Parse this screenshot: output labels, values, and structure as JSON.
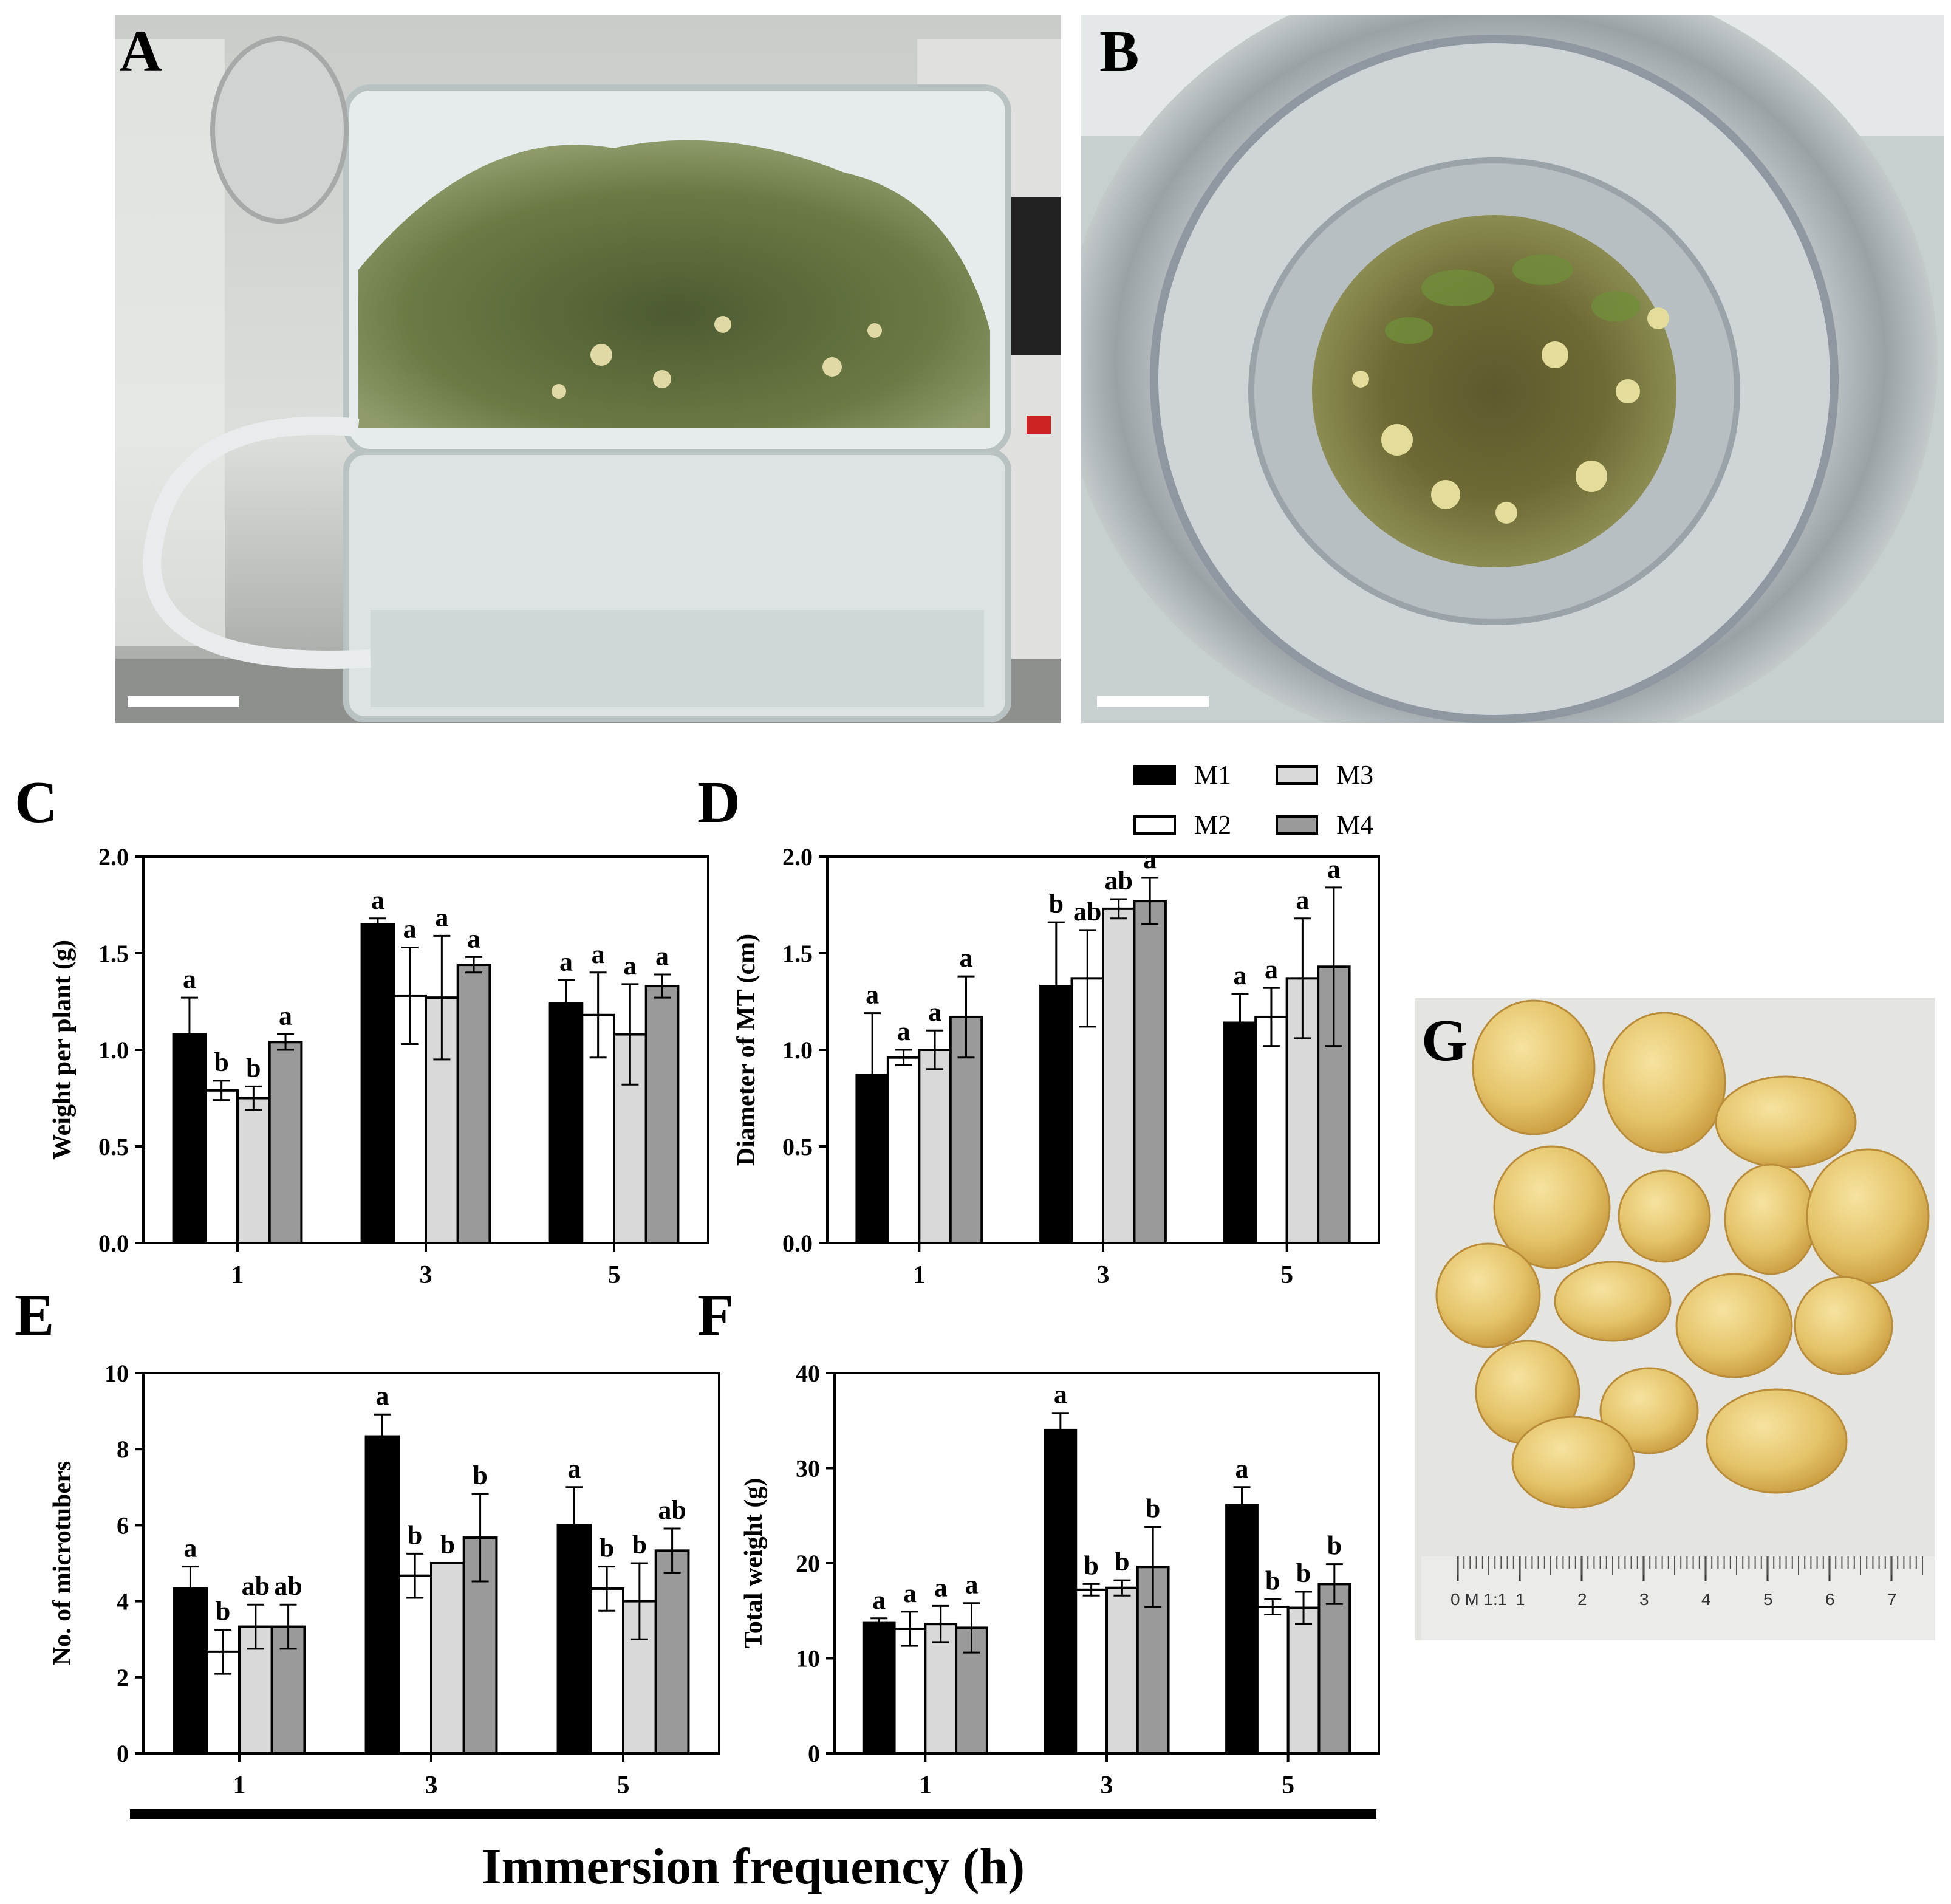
{
  "panels": {
    "A": "A",
    "B": "B",
    "C": "C",
    "D": "D",
    "E": "E",
    "F": "F",
    "G": "G"
  },
  "ruler": {
    "label": "0 M 1:1",
    "numbers": [
      "1",
      "2",
      "3",
      "4",
      "5",
      "6",
      "7"
    ]
  },
  "legend": [
    {
      "name": "M1",
      "color": "#000000"
    },
    {
      "name": "M2",
      "color": "#ffffff"
    },
    {
      "name": "M3",
      "color": "#d9d9d9"
    },
    {
      "name": "M4",
      "color": "#9a9a9a"
    }
  ],
  "x_axis_title": "Immersion frequency (h)",
  "chart_data": [
    {
      "panel": "C",
      "type": "bar",
      "ylabel": "Weight per plant (g)",
      "ylim": [
        0,
        2.0
      ],
      "yticks": [
        "0.0",
        "0.5",
        "1.0",
        "1.5",
        "2.0"
      ],
      "categories": [
        "1",
        "3",
        "5"
      ],
      "series": [
        {
          "name": "M1",
          "values": [
            1.08,
            1.65,
            1.24
          ],
          "errors": [
            0.19,
            0.03,
            0.12
          ],
          "letters": [
            "a",
            "a",
            "a"
          ]
        },
        {
          "name": "M2",
          "values": [
            0.79,
            1.28,
            1.18
          ],
          "errors": [
            0.05,
            0.25,
            0.22
          ],
          "letters": [
            "b",
            "a",
            "a"
          ]
        },
        {
          "name": "M3",
          "values": [
            0.75,
            1.27,
            1.08
          ],
          "errors": [
            0.06,
            0.32,
            0.26
          ],
          "letters": [
            "b",
            "a",
            "a"
          ]
        },
        {
          "name": "M4",
          "values": [
            1.04,
            1.44,
            1.33
          ],
          "errors": [
            0.04,
            0.04,
            0.06
          ],
          "letters": [
            "a",
            "a",
            "a"
          ]
        }
      ]
    },
    {
      "panel": "D",
      "type": "bar",
      "ylabel": "Diameter of MT (cm)",
      "ylim": [
        0,
        2.0
      ],
      "yticks": [
        "0.0",
        "0.5",
        "1.0",
        "1.5",
        "2.0"
      ],
      "categories": [
        "1",
        "3",
        "5"
      ],
      "series": [
        {
          "name": "M1",
          "values": [
            0.87,
            1.33,
            1.14
          ],
          "errors": [
            0.32,
            0.33,
            0.15
          ],
          "letters": [
            "a",
            "b",
            "a"
          ]
        },
        {
          "name": "M2",
          "values": [
            0.96,
            1.37,
            1.17
          ],
          "errors": [
            0.04,
            0.25,
            0.15
          ],
          "letters": [
            "a",
            "ab",
            "a"
          ]
        },
        {
          "name": "M3",
          "values": [
            1.0,
            1.73,
            1.37
          ],
          "errors": [
            0.1,
            0.05,
            0.31
          ],
          "letters": [
            "a",
            "ab",
            "a"
          ]
        },
        {
          "name": "M4",
          "values": [
            1.17,
            1.77,
            1.43
          ],
          "errors": [
            0.21,
            0.12,
            0.41
          ],
          "letters": [
            "a",
            "a",
            "a"
          ]
        }
      ]
    },
    {
      "panel": "E",
      "type": "bar",
      "ylabel": "No. of microtubers",
      "ylim": [
        0,
        10
      ],
      "yticks": [
        "0",
        "2",
        "4",
        "6",
        "8",
        "10"
      ],
      "categories": [
        "1",
        "3",
        "5"
      ],
      "series": [
        {
          "name": "M1",
          "values": [
            4.33,
            8.33,
            6.0
          ],
          "errors": [
            0.58,
            0.58,
            1.0
          ],
          "letters": [
            "a",
            "a",
            "a"
          ]
        },
        {
          "name": "M2",
          "values": [
            2.67,
            4.67,
            4.33
          ],
          "errors": [
            0.58,
            0.58,
            0.58
          ],
          "letters": [
            "b",
            "b",
            "b"
          ]
        },
        {
          "name": "M3",
          "values": [
            3.33,
            5.0,
            4.0
          ],
          "errors": [
            0.58,
            0.0,
            1.0
          ],
          "letters": [
            "ab",
            "b",
            "b"
          ]
        },
        {
          "name": "M4",
          "values": [
            3.33,
            5.67,
            5.33
          ],
          "errors": [
            0.58,
            1.15,
            0.58
          ],
          "letters": [
            "ab",
            "b",
            "ab"
          ]
        }
      ]
    },
    {
      "panel": "F",
      "type": "bar",
      "ylabel": "Total weight (g)",
      "ylim": [
        0,
        40
      ],
      "yticks": [
        "0",
        "10",
        "20",
        "30",
        "40"
      ],
      "categories": [
        "1",
        "3",
        "5"
      ],
      "series": [
        {
          "name": "M1",
          "values": [
            13.7,
            34.0,
            26.1
          ],
          "errors": [
            0.5,
            1.8,
            1.9
          ],
          "letters": [
            "a",
            "a",
            "a"
          ]
        },
        {
          "name": "M2",
          "values": [
            13.1,
            17.2,
            15.4
          ],
          "errors": [
            1.8,
            0.6,
            0.8
          ],
          "letters": [
            "a",
            "b",
            "b"
          ]
        },
        {
          "name": "M3",
          "values": [
            13.6,
            17.4,
            15.3
          ],
          "errors": [
            1.9,
            0.8,
            1.7
          ],
          "letters": [
            "a",
            "b",
            "b"
          ]
        },
        {
          "name": "M4",
          "values": [
            13.2,
            19.6,
            17.8
          ],
          "errors": [
            2.6,
            4.2,
            2.1
          ],
          "letters": [
            "a",
            "b",
            "b"
          ]
        }
      ]
    }
  ]
}
